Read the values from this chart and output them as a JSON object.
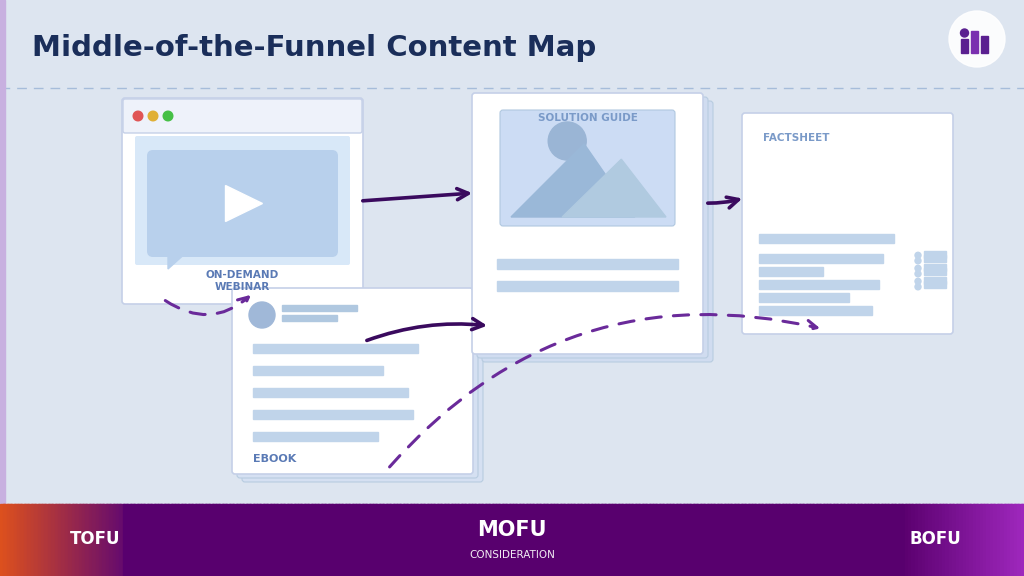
{
  "title": "Middle-of-the-Funnel Content Map",
  "bg_color": "#dde5f0",
  "card_color": "#ffffff",
  "card_border_color": "#c5d0e8",
  "light_blue": "#b8cce8",
  "text_dark": "#1a2e5a",
  "text_medium": "#5a7ab5",
  "text_label": "#7a9ac8",
  "arrow_solid_color": "#3a0a5e",
  "dot_line_color": "#6a2a9a",
  "tofu_label": "TOFU",
  "mofu_label": "MOFU",
  "mofu_sub": "CONSIDERATION",
  "bofu_label": "BOFU",
  "webinar_label": "ON-DEMAND\nWEBINAR",
  "ebook_label": "EBOOK",
  "solution_label": "SOLUTION GUIDE",
  "factsheet_label": "FACTSHEET",
  "logo_color": "#5a2090"
}
